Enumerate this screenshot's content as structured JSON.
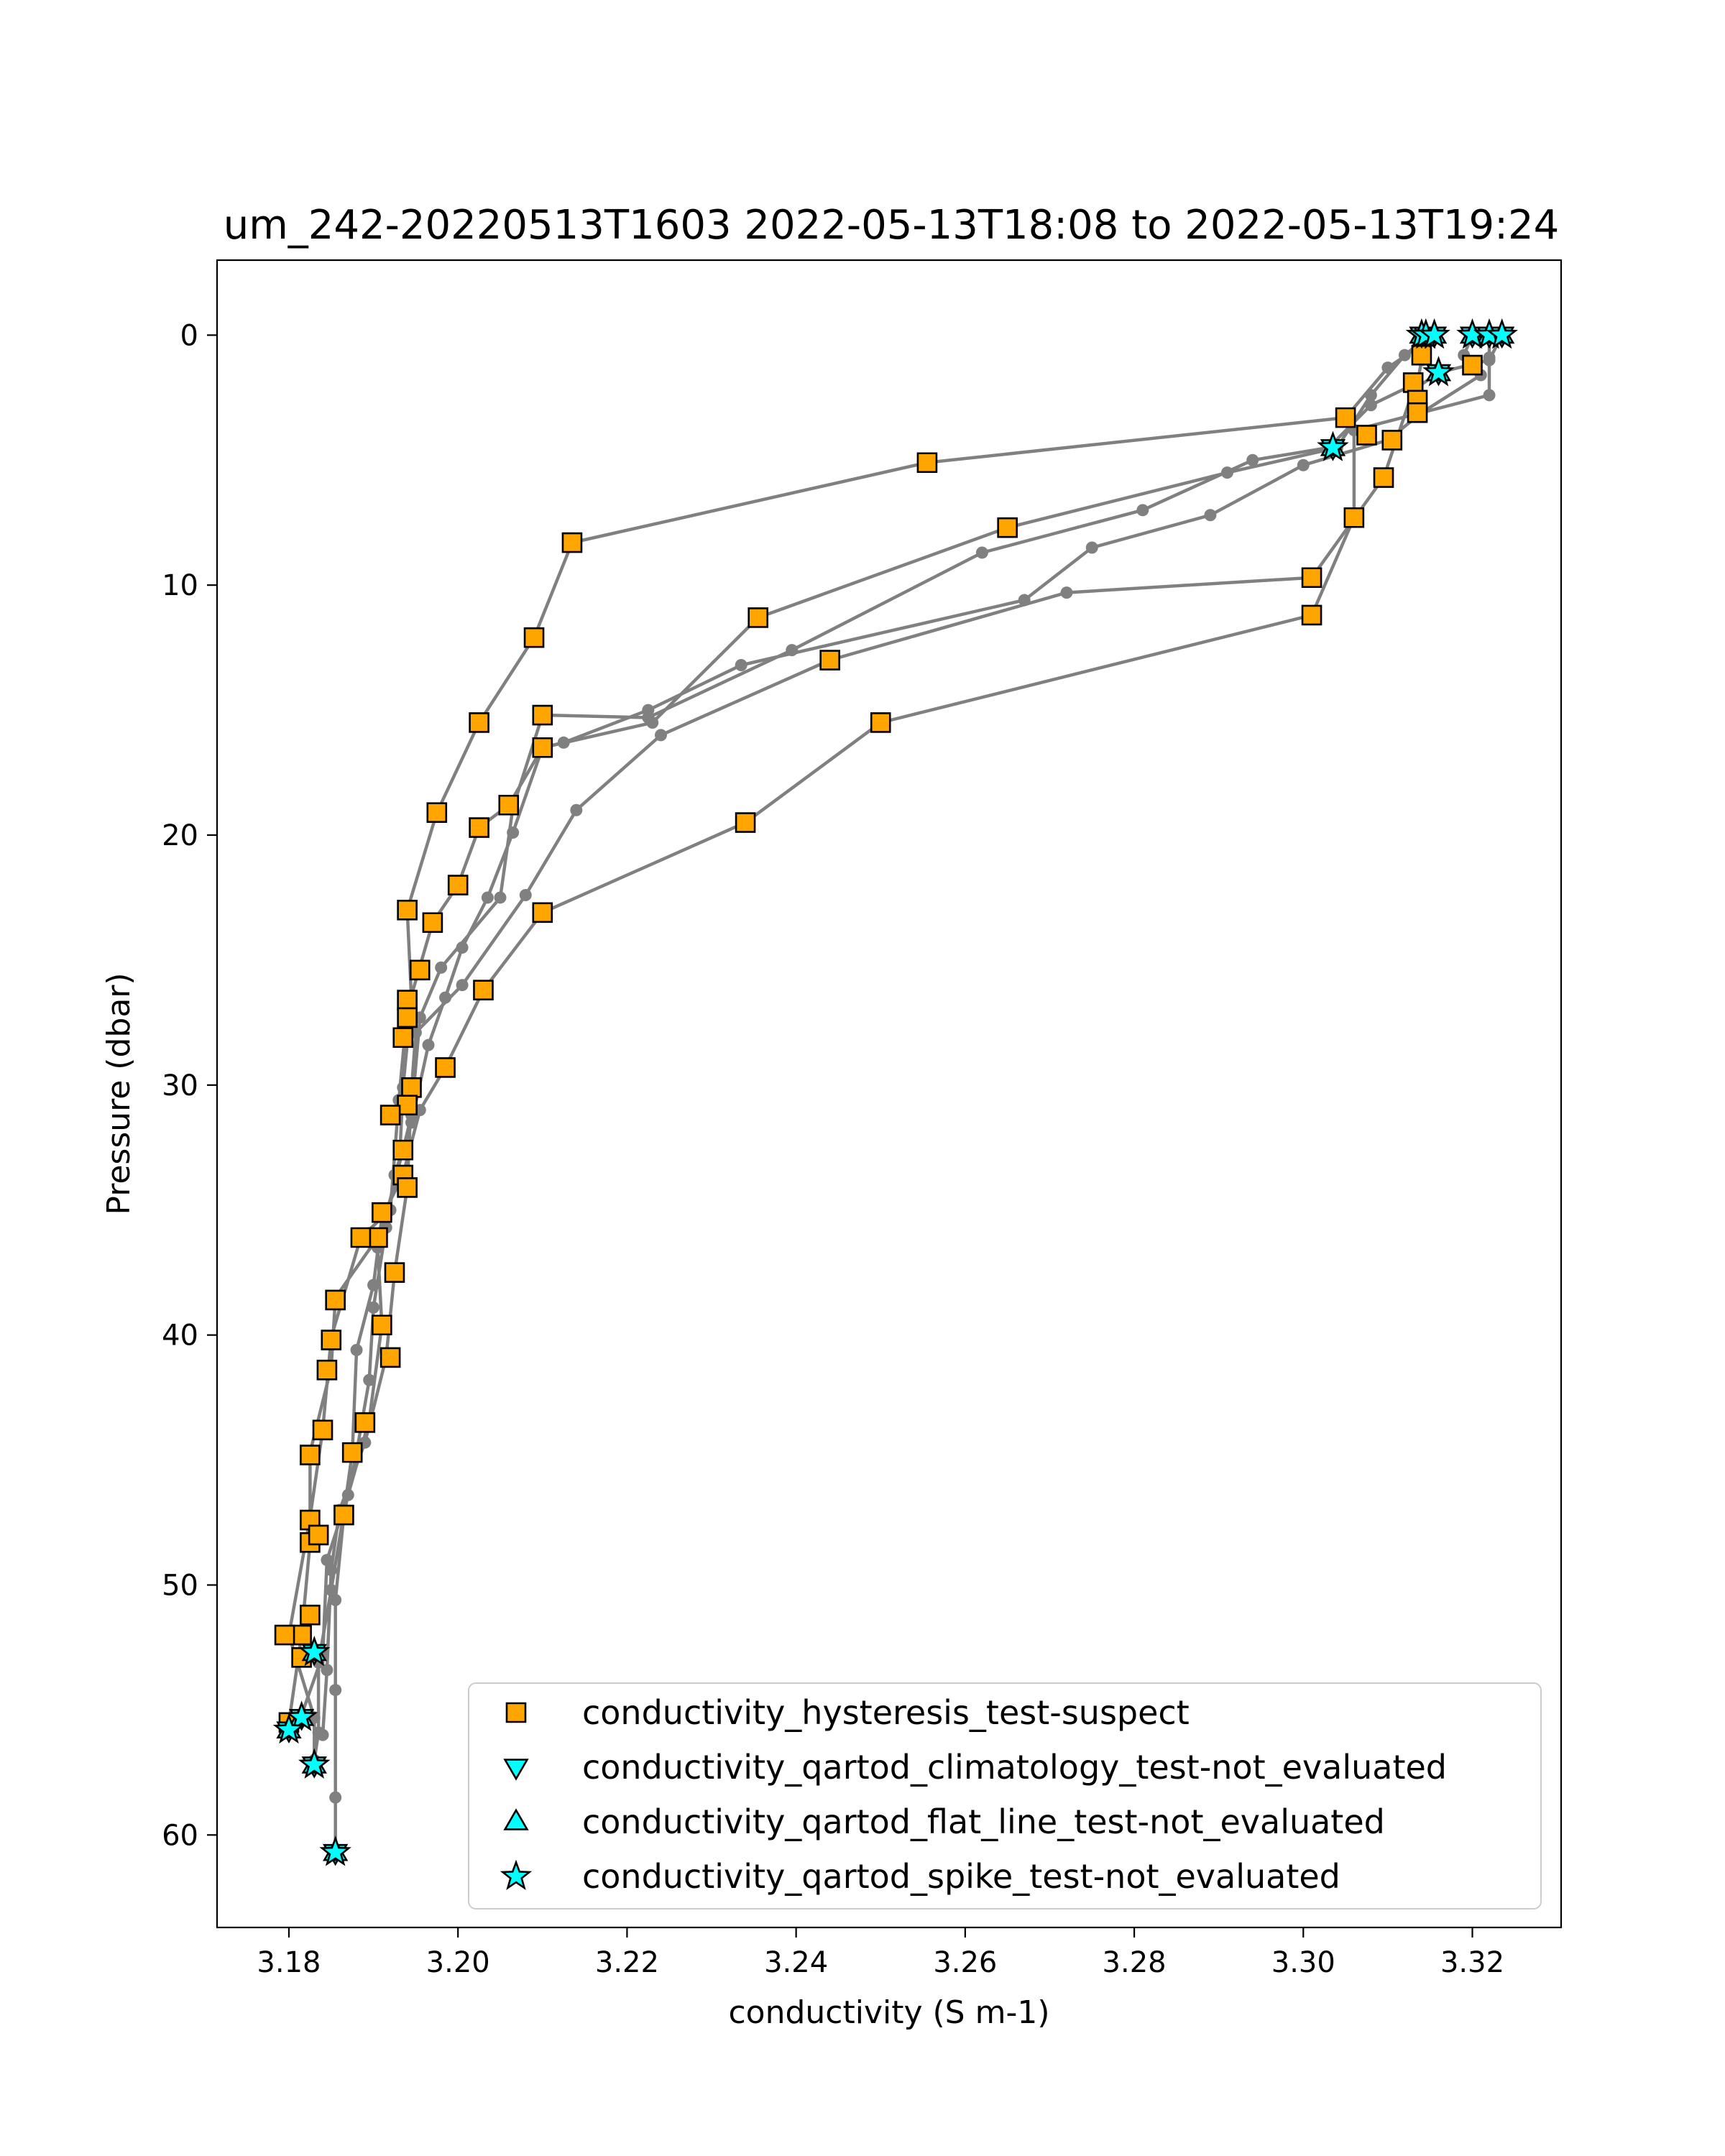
{
  "chart_data": {
    "type": "scatter",
    "title": "um_242-20220513T1603 2022-05-13T18:08 to 2022-05-13T19:24",
    "xlabel": "conductivity (S m-1)",
    "ylabel": "Pressure (dbar)",
    "xlim": [
      3.1715,
      3.3305
    ],
    "ylim": [
      63.7,
      -3.0
    ],
    "y_inverted": true,
    "x_ticks": [
      3.18,
      3.2,
      3.22,
      3.24,
      3.26,
      3.28,
      3.3,
      3.32
    ],
    "x_tick_labels": [
      "3.18",
      "3.20",
      "3.22",
      "3.24",
      "3.26",
      "3.28",
      "3.30",
      "3.32"
    ],
    "y_ticks": [
      0,
      10,
      20,
      30,
      40,
      50,
      60
    ],
    "y_tick_labels": [
      "0",
      "10",
      "20",
      "30",
      "40",
      "50",
      "60"
    ],
    "grid": false,
    "legend_position": "lower-right",
    "colors": {
      "profile_line": "#808080",
      "hysteresis_fill": "#FFA500",
      "qartod_fill": "#00FFFF",
      "marker_edge": "#000000"
    },
    "profiles": [
      [
        [
          3.314,
          0.0
        ],
        [
          3.3135,
          0.5
        ],
        [
          3.31,
          1.3
        ],
        [
          3.305,
          3.3
        ],
        [
          3.2555,
          5.1
        ],
        [
          3.2135,
          8.3
        ],
        [
          3.209,
          12.1
        ],
        [
          3.2025,
          15.5
        ],
        [
          3.1975,
          19.1
        ],
        [
          3.194,
          23.0
        ],
        [
          3.1945,
          26.6
        ],
        [
          3.1935,
          30.1
        ],
        [
          3.193,
          33.6
        ],
        [
          3.1905,
          36.1
        ],
        [
          3.1855,
          38.5
        ],
        [
          3.185,
          41.3
        ],
        [
          3.1825,
          44.7
        ],
        [
          3.1825,
          48.3
        ],
        [
          3.1815,
          52.0
        ],
        [
          3.18,
          55.5
        ]
      ],
      [
        [
          3.3145,
          0.1
        ],
        [
          3.312,
          0.8
        ],
        [
          3.308,
          2.4
        ],
        [
          3.304,
          4.5
        ],
        [
          3.291,
          5.5
        ],
        [
          3.265,
          7.7
        ],
        [
          3.2355,
          11.3
        ],
        [
          3.223,
          15.5
        ],
        [
          3.21,
          16.5
        ],
        [
          3.206,
          18.8
        ],
        [
          3.2025,
          19.7
        ],
        [
          3.2,
          22.0
        ],
        [
          3.197,
          23.5
        ],
        [
          3.194,
          27.0
        ],
        [
          3.193,
          30.6
        ],
        [
          3.192,
          35.0
        ],
        [
          3.1885,
          36.1
        ],
        [
          3.185,
          40.1
        ],
        [
          3.184,
          43.8
        ],
        [
          3.1825,
          47.3
        ],
        [
          3.18,
          52.0
        ],
        [
          3.183,
          55.3
        ],
        [
          3.183,
          57.2
        ]
      ],
      [
        [
          3.3155,
          0.0
        ],
        [
          3.314,
          1.0
        ],
        [
          3.3135,
          1.9
        ],
        [
          3.308,
          2.8
        ],
        [
          3.303,
          4.5
        ],
        [
          3.294,
          5.0
        ],
        [
          3.281,
          7.0
        ],
        [
          3.262,
          8.7
        ],
        [
          3.2395,
          12.6
        ],
        [
          3.2225,
          15.3
        ],
        [
          3.21,
          15.2
        ],
        [
          3.2065,
          18.9
        ],
        [
          3.205,
          22.5
        ],
        [
          3.198,
          25.3
        ],
        [
          3.1955,
          27.3
        ],
        [
          3.1945,
          31.2
        ],
        [
          3.1935,
          32.6
        ],
        [
          3.1905,
          36.5
        ],
        [
          3.191,
          39.6
        ],
        [
          3.1895,
          43.4
        ],
        [
          3.187,
          46.4
        ],
        [
          3.1845,
          49.0
        ],
        [
          3.184,
          52.8
        ],
        [
          3.1815,
          55.2
        ]
      ],
      [
        [
          3.32,
          0.0
        ],
        [
          3.319,
          0.8
        ],
        [
          3.321,
          1.6
        ],
        [
          3.314,
          3.1
        ],
        [
          3.31,
          4.2
        ],
        [
          3.3,
          5.2
        ],
        [
          3.289,
          7.2
        ],
        [
          3.275,
          8.5
        ],
        [
          3.267,
          10.6
        ],
        [
          3.2335,
          13.2
        ],
        [
          3.2225,
          15.0
        ],
        [
          3.2125,
          16.3
        ],
        [
          3.21,
          16.5
        ],
        [
          3.2065,
          19.9
        ],
        [
          3.2035,
          22.5
        ],
        [
          3.2005,
          24.5
        ],
        [
          3.1985,
          26.5
        ],
        [
          3.1965,
          28.4
        ],
        [
          3.1945,
          31.5
        ],
        [
          3.1925,
          33.6
        ],
        [
          3.1915,
          35.7
        ],
        [
          3.19,
          38.9
        ],
        [
          3.1895,
          41.8
        ],
        [
          3.188,
          44.7
        ],
        [
          3.1865,
          47.2
        ],
        [
          3.1855,
          50.6
        ],
        [
          3.1855,
          54.2
        ],
        [
          3.1855,
          58.5
        ],
        [
          3.1855,
          60.7
        ]
      ],
      [
        [
          3.3235,
          0.0
        ],
        [
          3.322,
          1.0
        ],
        [
          3.316,
          1.5
        ],
        [
          3.313,
          2.2
        ],
        [
          3.3095,
          5.7
        ],
        [
          3.301,
          9.7
        ],
        [
          3.272,
          10.3
        ],
        [
          3.244,
          13.0
        ],
        [
          3.224,
          16.0
        ],
        [
          3.214,
          19.0
        ],
        [
          3.208,
          22.4
        ],
        [
          3.2005,
          26.0
        ],
        [
          3.195,
          27.9
        ],
        [
          3.1945,
          30.2
        ],
        [
          3.194,
          34.1
        ],
        [
          3.1925,
          37.5
        ],
        [
          3.1915,
          40.9
        ],
        [
          3.189,
          44.3
        ],
        [
          3.186,
          47.0
        ],
        [
          3.185,
          49.4
        ],
        [
          3.1845,
          53.4
        ],
        [
          3.184,
          56.0
        ]
      ],
      [
        [
          3.322,
          0.0
        ],
        [
          3.322,
          0.9
        ],
        [
          3.322,
          2.4
        ],
        [
          3.306,
          3.8
        ],
        [
          3.306,
          7.3
        ],
        [
          3.301,
          11.2
        ],
        [
          3.25,
          15.5
        ],
        [
          3.234,
          19.5
        ],
        [
          3.21,
          23.1
        ],
        [
          3.203,
          26.2
        ],
        [
          3.1985,
          29.3
        ],
        [
          3.1955,
          31.0
        ],
        [
          3.1935,
          33.6
        ],
        [
          3.191,
          35.3
        ],
        [
          3.19,
          38.0
        ],
        [
          3.188,
          40.6
        ],
        [
          3.1875,
          44.7
        ],
        [
          3.1865,
          47.1
        ],
        [
          3.185,
          50.2
        ],
        [
          3.1835,
          53.1
        ],
        [
          3.1835,
          55.9
        ],
        [
          3.183,
          57.0
        ]
      ]
    ],
    "series": [
      {
        "name": "conductivity_hysteresis_test-suspect",
        "marker": "square",
        "color": "#FFA500",
        "points": [
          [
            3.314,
            0.8
          ],
          [
            3.313,
            1.9
          ],
          [
            3.3135,
            2.6
          ],
          [
            3.3135,
            3.1
          ],
          [
            3.32,
            1.2
          ],
          [
            3.305,
            3.3
          ],
          [
            3.3075,
            4.0
          ],
          [
            3.3105,
            4.2
          ],
          [
            3.3095,
            5.7
          ],
          [
            3.306,
            7.3
          ],
          [
            3.301,
            9.7
          ],
          [
            3.301,
            11.2
          ],
          [
            3.2555,
            5.1
          ],
          [
            3.265,
            7.7
          ],
          [
            3.2135,
            8.3
          ],
          [
            3.2355,
            11.3
          ],
          [
            3.209,
            12.1
          ],
          [
            3.244,
            13.0
          ],
          [
            3.25,
            15.5
          ],
          [
            3.2025,
            15.5
          ],
          [
            3.21,
            15.2
          ],
          [
            3.21,
            16.5
          ],
          [
            3.1975,
            19.1
          ],
          [
            3.206,
            18.8
          ],
          [
            3.2025,
            19.7
          ],
          [
            3.234,
            19.5
          ],
          [
            3.2,
            22.0
          ],
          [
            3.194,
            23.0
          ],
          [
            3.197,
            23.5
          ],
          [
            3.21,
            23.1
          ],
          [
            3.1955,
            25.4
          ],
          [
            3.203,
            26.2
          ],
          [
            3.194,
            26.6
          ],
          [
            3.194,
            27.3
          ],
          [
            3.1935,
            28.1
          ],
          [
            3.1985,
            29.3
          ],
          [
            3.1945,
            30.1
          ],
          [
            3.194,
            30.8
          ],
          [
            3.192,
            31.2
          ],
          [
            3.1935,
            32.6
          ],
          [
            3.1935,
            33.6
          ],
          [
            3.194,
            34.1
          ],
          [
            3.191,
            35.1
          ],
          [
            3.1905,
            36.1
          ],
          [
            3.1885,
            36.1
          ],
          [
            3.1925,
            37.5
          ],
          [
            3.1855,
            38.6
          ],
          [
            3.185,
            40.2
          ],
          [
            3.191,
            39.6
          ],
          [
            3.192,
            40.9
          ],
          [
            3.1845,
            41.4
          ],
          [
            3.184,
            43.8
          ],
          [
            3.189,
            43.5
          ],
          [
            3.1825,
            44.8
          ],
          [
            3.1875,
            44.7
          ],
          [
            3.1865,
            47.2
          ],
          [
            3.1825,
            47.4
          ],
          [
            3.1825,
            48.3
          ],
          [
            3.1835,
            48.0
          ],
          [
            3.1825,
            51.2
          ],
          [
            3.1815,
            52.0
          ],
          [
            3.1795,
            52.0
          ],
          [
            3.1815,
            52.9
          ],
          [
            3.18,
            55.5
          ]
        ]
      },
      {
        "name": "conductivity_qartod_climatology_test-not_evaluated",
        "marker": "triangle-down",
        "color": "#00FFFF",
        "points": [
          [
            3.314,
            0.0
          ],
          [
            3.3145,
            0.0
          ],
          [
            3.3155,
            0.0
          ],
          [
            3.32,
            0.0
          ],
          [
            3.322,
            0.0
          ],
          [
            3.3235,
            0.0
          ],
          [
            3.316,
            1.5
          ],
          [
            3.3035,
            4.5
          ],
          [
            3.183,
            52.7
          ],
          [
            3.1815,
            55.3
          ],
          [
            3.18,
            55.8
          ],
          [
            3.183,
            57.2
          ],
          [
            3.1855,
            60.7
          ]
        ]
      },
      {
        "name": "conductivity_qartod_flat_line_test-not_evaluated",
        "marker": "triangle-up",
        "color": "#00FFFF",
        "points": [
          [
            3.314,
            0.0
          ],
          [
            3.3145,
            0.0
          ],
          [
            3.3155,
            0.0
          ],
          [
            3.32,
            0.0
          ],
          [
            3.322,
            0.0
          ],
          [
            3.3235,
            0.0
          ],
          [
            3.316,
            1.5
          ],
          [
            3.3035,
            4.5
          ],
          [
            3.183,
            52.7
          ],
          [
            3.1815,
            55.3
          ],
          [
            3.18,
            55.8
          ],
          [
            3.183,
            57.2
          ],
          [
            3.1855,
            60.7
          ]
        ]
      },
      {
        "name": "conductivity_qartod_spike_test-not_evaluated",
        "marker": "star",
        "color": "#00FFFF",
        "points": [
          [
            3.314,
            0.0
          ],
          [
            3.3145,
            0.0
          ],
          [
            3.3155,
            0.0
          ],
          [
            3.32,
            0.0
          ],
          [
            3.322,
            0.0
          ],
          [
            3.3235,
            0.0
          ],
          [
            3.316,
            1.5
          ],
          [
            3.3035,
            4.5
          ],
          [
            3.183,
            52.7
          ],
          [
            3.1815,
            55.3
          ],
          [
            3.18,
            55.8
          ],
          [
            3.183,
            57.2
          ],
          [
            3.1855,
            60.7
          ]
        ]
      }
    ]
  }
}
